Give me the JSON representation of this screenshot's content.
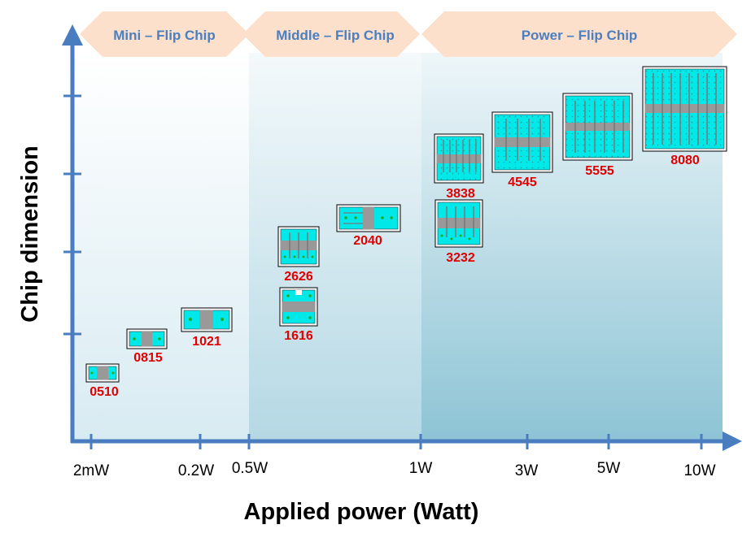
{
  "colors": {
    "axis": "#4a7cc0",
    "arrow_fill": "#fde0cc",
    "band_text": "#4a7fc0",
    "chip_label": "#e00000",
    "chip_body": "#00e8e8",
    "chip_metal": "#999999",
    "chip_dot": "#22aa22"
  },
  "bands": [
    {
      "label": "Mini – Flip Chip"
    },
    {
      "label": "Middle – Flip Chip"
    },
    {
      "label": "Power – Flip Chip"
    }
  ],
  "x_ticks": [
    "2mW",
    "0.2W",
    "0.5W",
    "1W",
    "3W",
    "5W",
    "10W"
  ],
  "x_axis_title": "Applied power (Watt)",
  "y_axis_title": "Chip dimension",
  "chips": [
    {
      "label": "0510"
    },
    {
      "label": "0815"
    },
    {
      "label": "1021"
    },
    {
      "label": "1616"
    },
    {
      "label": "2626"
    },
    {
      "label": "2040"
    },
    {
      "label": "3232"
    },
    {
      "label": "3838"
    },
    {
      "label": "4545"
    },
    {
      "label": "5555"
    },
    {
      "label": "8080"
    }
  ]
}
